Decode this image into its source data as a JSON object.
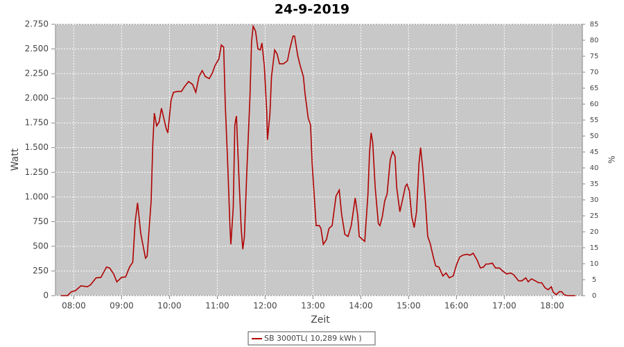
{
  "chart_data": {
    "type": "line",
    "title": "24-9-2019",
    "x_label": "Zeit",
    "y_label": "Watt",
    "y2_label": "%",
    "x": [
      "07:44",
      "07:52",
      "07:57",
      "08:02",
      "08:09",
      "08:17",
      "08:21",
      "08:28",
      "08:34",
      "08:41",
      "08:45",
      "08:50",
      "08:54",
      "09:00",
      "09:05",
      "09:10",
      "09:14",
      "09:17",
      "09:20",
      "09:24",
      "09:27",
      "09:30",
      "09:32",
      "09:37",
      "09:39",
      "09:41",
      "09:44",
      "09:47",
      "09:50",
      "09:52",
      "09:56",
      "09:58",
      "10:02",
      "10:05",
      "10:10",
      "10:15",
      "10:19",
      "10:24",
      "10:29",
      "10:33",
      "10:37",
      "10:41",
      "10:45",
      "10:50",
      "10:54",
      "10:57",
      "11:02",
      "11:05",
      "11:08",
      "11:10",
      "11:13",
      "11:16",
      "11:17",
      "11:20",
      "11:22",
      "11:24",
      "11:27",
      "11:30",
      "11:32",
      "11:34",
      "11:37",
      "11:41",
      "11:43",
      "11:45",
      "11:48",
      "11:51",
      "11:54",
      "11:56",
      "11:59",
      "12:02",
      "12:03",
      "12:06",
      "12:08",
      "12:12",
      "12:15",
      "12:18",
      "12:23",
      "12:28",
      "12:31",
      "12:35",
      "12:37",
      "12:41",
      "12:44",
      "12:48",
      "12:50",
      "12:54",
      "12:57",
      "12:59",
      "13:02",
      "13:04",
      "13:08",
      "13:10",
      "13:13",
      "13:17",
      "13:20",
      "13:24",
      "13:29",
      "13:33",
      "13:36",
      "13:40",
      "13:44",
      "13:48",
      "13:53",
      "13:56",
      "13:58",
      "14:02",
      "14:05",
      "14:09",
      "14:11",
      "14:13",
      "14:15",
      "14:18",
      "14:22",
      "14:24",
      "14:27",
      "14:30",
      "14:33",
      "14:37",
      "14:40",
      "14:43",
      "14:45",
      "14:49",
      "14:52",
      "14:56",
      "14:58",
      "15:01",
      "15:04",
      "15:07",
      "15:10",
      "15:13",
      "15:15",
      "15:18",
      "15:21",
      "15:24",
      "15:27",
      "15:31",
      "15:34",
      "15:38",
      "15:43",
      "15:47",
      "15:51",
      "15:56",
      "16:00",
      "16:04",
      "16:08",
      "16:13",
      "16:17",
      "16:21",
      "16:26",
      "16:30",
      "16:34",
      "16:37",
      "16:40",
      "16:45",
      "16:49",
      "16:54",
      "16:58",
      "17:03",
      "17:08",
      "17:12",
      "17:18",
      "17:22",
      "17:27",
      "17:30",
      "17:34",
      "17:39",
      "17:43",
      "17:47",
      "17:51",
      "17:55",
      "17:59",
      "18:01",
      "18:05",
      "18:09",
      "18:12",
      "18:15",
      "18:19",
      "18:29"
    ],
    "series": [
      {
        "name": "SB 3000TL( 10,289 kWh )",
        "color": "#b00000",
        "values": [
          0,
          0,
          40,
          50,
          100,
          90,
          110,
          180,
          185,
          290,
          280,
          220,
          140,
          185,
          190,
          290,
          340,
          750,
          940,
          630,
          500,
          380,
          400,
          960,
          1520,
          1850,
          1720,
          1760,
          1900,
          1830,
          1690,
          1650,
          1980,
          2060,
          2070,
          2070,
          2120,
          2170,
          2140,
          2060,
          2220,
          2280,
          2220,
          2200,
          2260,
          2330,
          2400,
          2540,
          2520,
          1940,
          1340,
          680,
          520,
          890,
          1730,
          1820,
          1240,
          680,
          470,
          600,
          1240,
          2010,
          2570,
          2730,
          2680,
          2500,
          2490,
          2560,
          2330,
          1870,
          1580,
          1840,
          2220,
          2490,
          2450,
          2350,
          2350,
          2380,
          2500,
          2630,
          2630,
          2430,
          2330,
          2220,
          2050,
          1800,
          1730,
          1340,
          960,
          710,
          710,
          680,
          520,
          570,
          680,
          710,
          1010,
          1070,
          820,
          620,
          600,
          710,
          990,
          820,
          600,
          570,
          550,
          1030,
          1450,
          1650,
          1550,
          1100,
          730,
          710,
          800,
          960,
          1030,
          1380,
          1460,
          1410,
          1100,
          850,
          960,
          1110,
          1130,
          1060,
          800,
          690,
          850,
          1340,
          1500,
          1270,
          960,
          600,
          530,
          390,
          300,
          290,
          200,
          230,
          180,
          200,
          310,
          390,
          410,
          420,
          410,
          430,
          360,
          280,
          290,
          320,
          320,
          330,
          280,
          280,
          250,
          220,
          230,
          210,
          150,
          150,
          180,
          140,
          170,
          150,
          130,
          130,
          80,
          60,
          90,
          40,
          10,
          40,
          40,
          10,
          0,
          0
        ]
      }
    ],
    "xlim": [
      "07:37",
      "18:38"
    ],
    "xticks": [
      "08:00",
      "09:00",
      "10:00",
      "11:00",
      "12:00",
      "13:00",
      "14:00",
      "15:00",
      "16:00",
      "17:00",
      "18:00"
    ],
    "ylim": [
      0,
      2750
    ],
    "yticks": [
      0,
      250,
      500,
      750,
      {
        "value": 1000,
        "label": "1.000"
      },
      {
        "value": 1250,
        "label": "1.250"
      },
      {
        "value": 1500,
        "label": "1.500"
      },
      {
        "value": 1750,
        "label": "1.750"
      },
      {
        "value": 2000,
        "label": "2.000"
      },
      {
        "value": 2250,
        "label": "2.250"
      },
      {
        "value": 2500,
        "label": "2.500"
      },
      {
        "value": 2750,
        "label": "2.750"
      }
    ],
    "y2lim": [
      0,
      85
    ],
    "y2ticks": [
      0,
      5,
      10,
      15,
      20,
      25,
      30,
      35,
      40,
      45,
      50,
      55,
      60,
      65,
      70,
      75,
      80,
      85
    ],
    "grid": true,
    "legend": "bottom"
  }
}
